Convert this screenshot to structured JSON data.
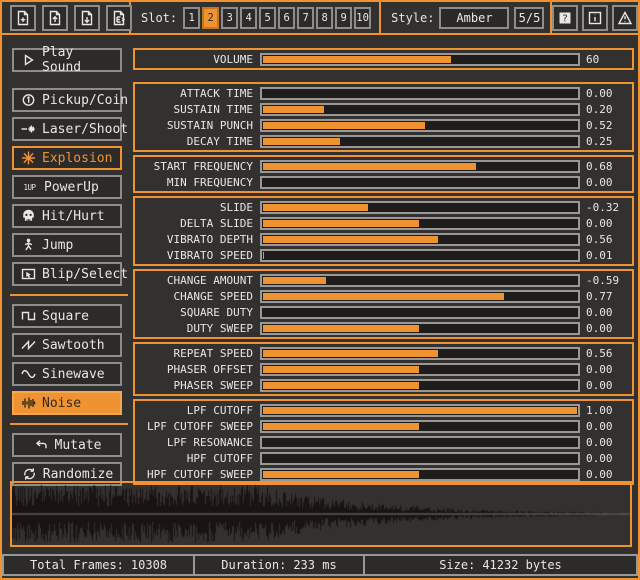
{
  "colors": {
    "accent": "#ef9332",
    "bg": "#333130",
    "panel": "#2c2b2a",
    "track": "#1e1d1c",
    "text": "#e9e7e4",
    "border": "#8f8d8a",
    "statusborder": "#9a9896",
    "waveform": "#171110"
  },
  "topbar": {
    "file_buttons": [
      {
        "name": "file-plus-button",
        "icon": "file-plus-icon"
      },
      {
        "name": "file-arrow-up-button",
        "icon": "file-arrow-up-icon"
      },
      {
        "name": "file-arrow-down-button",
        "icon": "file-arrow-down-icon"
      },
      {
        "name": "file-export-button",
        "icon": "file-export-icon"
      }
    ],
    "slot": {
      "label": "Slot:",
      "slots": [
        "1",
        "2",
        "3",
        "4",
        "5",
        "6",
        "7",
        "8",
        "9",
        "10"
      ],
      "active": "2"
    },
    "style": {
      "label": "Style:",
      "value": "Amber",
      "page": "5/5"
    },
    "meta_buttons": [
      {
        "name": "help-button",
        "icon": "help-icon"
      },
      {
        "name": "info-button",
        "icon": "info-icon"
      },
      {
        "name": "warning-button",
        "icon": "warning-icon"
      }
    ]
  },
  "sidebar": {
    "play_button": {
      "label": "Play Sound",
      "icon": "play-icon"
    },
    "generators": [
      {
        "name": "generator-pickup-coin",
        "icon": "coin-icon",
        "label": "Pickup/Coin"
      },
      {
        "name": "generator-laser-shoot",
        "icon": "laser-icon",
        "label": "Laser/Shoot"
      },
      {
        "name": "generator-explosion",
        "icon": "explosion-icon",
        "label": "Explosion",
        "selected": true
      },
      {
        "name": "generator-powerup",
        "icon": "oneup-icon",
        "icon_text": "1UP",
        "label": "PowerUp"
      },
      {
        "name": "generator-hit-hurt",
        "icon": "skull-icon",
        "label": "Hit/Hurt"
      },
      {
        "name": "generator-jump",
        "icon": "jump-icon",
        "label": "Jump"
      },
      {
        "name": "generator-blip-select",
        "icon": "blip-icon",
        "label": "Blip/Select"
      }
    ],
    "waveforms": [
      {
        "name": "waveform-square",
        "icon": "square-wave-icon",
        "label": "Square"
      },
      {
        "name": "waveform-sawtooth",
        "icon": "sawtooth-wave-icon",
        "label": "Sawtooth"
      },
      {
        "name": "waveform-sinewave",
        "icon": "sine-wave-icon",
        "label": "Sinewave"
      },
      {
        "name": "waveform-noise",
        "icon": "noise-wave-icon",
        "label": "Noise",
        "selected": true
      }
    ],
    "tools": [
      {
        "name": "mutate-button",
        "icon": "mutate-icon",
        "label": "Mutate"
      },
      {
        "name": "randomize-button",
        "icon": "randomize-icon",
        "label": "Randomize"
      }
    ]
  },
  "params": {
    "groups": [
      {
        "name": "volume-group",
        "rows": [
          {
            "label": "VOLUME",
            "value": "60",
            "fill": 0.6
          }
        ]
      },
      {
        "name": "envelope-group",
        "rows": [
          {
            "label": "ATTACK TIME",
            "value": "0.00",
            "fill": 0
          },
          {
            "label": "SUSTAIN TIME",
            "value": "0.20",
            "fill": 0.2
          },
          {
            "label": "SUSTAIN PUNCH",
            "value": "0.52",
            "fill": 0.52
          },
          {
            "label": "DECAY TIME",
            "value": "0.25",
            "fill": 0.25
          }
        ]
      },
      {
        "name": "frequency-group",
        "rows": [
          {
            "label": "START FREQUENCY",
            "value": "0.68",
            "fill": 0.68
          },
          {
            "label": "MIN FREQUENCY",
            "value": "0.00",
            "fill": 0
          }
        ]
      },
      {
        "name": "slide-vibrato-group",
        "rows": [
          {
            "label": "SLIDE",
            "value": "-0.32",
            "fill": 0.34
          },
          {
            "label": "DELTA SLIDE",
            "value": "0.00",
            "fill": 0.5
          },
          {
            "label": "VIBRATO DEPTH",
            "value": "0.56",
            "fill": 0.56
          },
          {
            "label": "VIBRATO SPEED",
            "value": "0.01",
            "fill": 0.01
          }
        ]
      },
      {
        "name": "change-duty-group",
        "rows": [
          {
            "label": "CHANGE AMOUNT",
            "value": "-0.59",
            "fill": 0.205
          },
          {
            "label": "CHANGE SPEED",
            "value": "0.77",
            "fill": 0.77
          },
          {
            "label": "SQUARE DUTY",
            "value": "0.00",
            "fill": 0
          },
          {
            "label": "DUTY SWEEP",
            "value": "0.00",
            "fill": 0.5
          }
        ]
      },
      {
        "name": "repeat-phaser-group",
        "rows": [
          {
            "label": "REPEAT SPEED",
            "value": "0.56",
            "fill": 0.56
          },
          {
            "label": "PHASER OFFSET",
            "value": "0.00",
            "fill": 0.5
          },
          {
            "label": "PHASER SWEEP",
            "value": "0.00",
            "fill": 0.5
          }
        ]
      },
      {
        "name": "filter-group",
        "rows": [
          {
            "label": "LPF CUTOFF",
            "value": "1.00",
            "fill": 1
          },
          {
            "label": "LPF CUTOFF SWEEP",
            "value": "0.00",
            "fill": 0.5
          },
          {
            "label": "LPF RESONANCE",
            "value": "0.00",
            "fill": 0
          },
          {
            "label": "HPF CUTOFF",
            "value": "0.00",
            "fill": 0
          },
          {
            "label": "HPF CUTOFF SWEEP",
            "value": "0.00",
            "fill": 0.5
          }
        ]
      }
    ]
  },
  "waveform_preview": {
    "shape": "decaying-noise-burst"
  },
  "statusbar": {
    "cells": [
      {
        "name": "status-total-frames",
        "label": "Total Frames:",
        "value": "10308"
      },
      {
        "name": "status-duration",
        "label": "Duration:",
        "value": "233 ms"
      },
      {
        "name": "status-size",
        "label": "Size:",
        "value": "41232 bytes"
      }
    ]
  }
}
